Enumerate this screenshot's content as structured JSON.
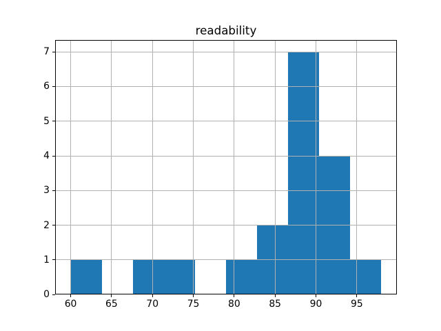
{
  "chart_data": {
    "type": "histogram",
    "title": "readability",
    "bin_edges": [
      60,
      63.8,
      67.6,
      71.4,
      75.2,
      79,
      82.8,
      86.6,
      90.4,
      94.2,
      98
    ],
    "counts": [
      1,
      0,
      1,
      1,
      0,
      1,
      2,
      7,
      4,
      1
    ],
    "xticks": [
      60,
      65,
      70,
      75,
      80,
      85,
      90,
      95
    ],
    "yticks": [
      0,
      1,
      2,
      3,
      4,
      5,
      6,
      7
    ],
    "xlim": [
      58.1,
      99.9
    ],
    "ylim": [
      0,
      7.35
    ],
    "xlabel": "",
    "ylabel": "",
    "grid": true,
    "legend": "none",
    "bar_color": "#1f77b4",
    "grid_color": "#b0b0b0",
    "spine_color": "#000000",
    "background_color": "#ffffff"
  }
}
